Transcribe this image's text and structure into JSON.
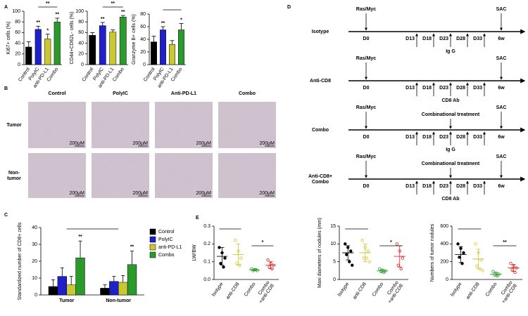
{
  "panel_labels": [
    "A",
    "B",
    "C",
    "D",
    "E"
  ],
  "chart_data": [
    {
      "type": "bar",
      "ylabel": "Ki67+ cells (%)",
      "categories": [
        "Control",
        "PolyIC",
        "anti-PD-L1",
        "Combo"
      ],
      "values": [
        33,
        66,
        48,
        80
      ],
      "errors": [
        10,
        6,
        9,
        7
      ],
      "colors": [
        "#000000",
        "#2020c8",
        "#c8c832",
        "#2a9a2a"
      ],
      "ylim": [
        0,
        100
      ],
      "yticks": [
        0,
        20,
        40,
        60,
        80,
        100
      ],
      "stars": [
        null,
        "**",
        "*",
        "**"
      ],
      "bracket_label": "**"
    },
    {
      "type": "bar",
      "ylabel": "CD44+CD62L- cells (%)",
      "categories": [
        "Control",
        "PolyIC",
        "anti-PD-L1",
        "Combo"
      ],
      "values": [
        55,
        73,
        61,
        89
      ],
      "errors": [
        5,
        6,
        4,
        3
      ],
      "colors": [
        "#000000",
        "#2020c8",
        "#c8c832",
        "#2a9a2a"
      ],
      "ylim": [
        0,
        100
      ],
      "yticks": [
        0,
        20,
        40,
        60,
        80,
        100
      ],
      "stars": [
        null,
        "**",
        null,
        "**"
      ],
      "bracket_label": "**"
    },
    {
      "type": "bar",
      "ylabel": "Granzyme B+ cells (%)",
      "categories": [
        "Control",
        "PolyIC",
        "anti-PD-L1",
        "Combo"
      ],
      "values": [
        36,
        55,
        32,
        55
      ],
      "errors": [
        9,
        5,
        6,
        10
      ],
      "colors": [
        "#000000",
        "#2020c8",
        "#c8c832",
        "#2a9a2a"
      ],
      "ylim": [
        0,
        80
      ],
      "yticks": [
        0,
        20,
        40,
        60,
        80
      ],
      "stars": [
        null,
        "**",
        null,
        "*"
      ]
    },
    {
      "type": "grouped_bar",
      "ylabel": "Standardized number of CD8+ cells",
      "categories": [
        "Tumor",
        "Non-tumor"
      ],
      "ylim": [
        0,
        40
      ],
      "yticks": [
        0,
        10,
        20,
        30,
        40
      ],
      "series": [
        {
          "name": "Control",
          "color": "#000000",
          "values": [
            5,
            4
          ],
          "errors": [
            4,
            2
          ]
        },
        {
          "name": "PolyIC",
          "color": "#2020c8",
          "values": [
            11,
            8
          ],
          "errors": [
            5,
            3
          ]
        },
        {
          "name": "anti-PD-L1",
          "color": "#c8c832",
          "values": [
            6,
            7.5
          ],
          "errors": [
            5,
            4
          ]
        },
        {
          "name": "Combo",
          "color": "#2a9a2a",
          "values": [
            22,
            18
          ],
          "errors": [
            10,
            8
          ]
        }
      ],
      "stars": [
        "**",
        "**"
      ]
    },
    {
      "type": "dot",
      "ylabel": "LW/BW",
      "categories": [
        "Isotype",
        "anti-CD8",
        "Combo",
        "Combo\n+anti-CD8"
      ],
      "colors": [
        "#000000",
        "#d4c430",
        "#2a9a2a",
        "#e02020"
      ],
      "ylim": [
        0,
        0.3
      ],
      "yticks": [
        {
          "value": 0,
          "label": "0.0"
        },
        {
          "value": 0.1,
          "label": "0.1"
        },
        {
          "value": 0.2,
          "label": "0.2"
        },
        {
          "value": 0.3,
          "label": "0.3"
        }
      ],
      "points": [
        [
          0.18,
          0.15,
          0.12,
          0.09,
          0.07
        ],
        [
          0.22,
          0.16,
          0.12,
          0.09,
          0.08
        ],
        [
          0.06,
          0.055,
          0.05,
          0.05,
          0.055
        ],
        [
          0.11,
          0.09,
          0.08,
          0.07,
          0.06
        ]
      ],
      "means": [
        0.13,
        0.14,
        0.054,
        0.08
      ],
      "sds": [
        0.05,
        0.06,
        0.005,
        0.02
      ],
      "pair_labels": [
        null,
        "*"
      ]
    },
    {
      "type": "dot",
      "ylabel": "Maxi diameters of nodules (mm)",
      "categories": [
        "Isotype",
        "anti-CD8",
        "Combo",
        "Combo\n+anti-CD8"
      ],
      "colors": [
        "#000000",
        "#d4c430",
        "#2a9a2a",
        "#e02020"
      ],
      "ylim": [
        0,
        15
      ],
      "yticks": [
        0,
        5,
        10,
        15
      ],
      "points": [
        [
          10,
          9,
          8,
          7,
          5,
          4
        ],
        [
          11,
          9,
          8,
          6,
          6,
          5
        ],
        [
          3,
          2.6,
          2.4,
          2.2,
          2
        ],
        [
          10,
          8,
          6,
          4,
          3
        ]
      ],
      "means": [
        7.5,
        7.5,
        2.4,
        6.5
      ],
      "sds": [
        2,
        2.5,
        0.4,
        3
      ],
      "pair_labels": [
        null,
        "*"
      ]
    },
    {
      "type": "dot",
      "ylabel": "Numbers of tumor nodules",
      "categories": [
        "Isotype",
        "anti-CD8",
        "Combo",
        "Combo\n+anti-CD8"
      ],
      "colors": [
        "#000000",
        "#d4c430",
        "#2a9a2a",
        "#e02020"
      ],
      "ylim": [
        0,
        600
      ],
      "yticks": [
        0,
        200,
        400,
        600
      ],
      "points": [
        [
          400,
          350,
          300,
          250,
          180
        ],
        [
          400,
          300,
          220,
          150,
          120,
          100
        ],
        [
          90,
          70,
          60,
          50,
          40
        ],
        [
          180,
          150,
          130,
          110,
          80
        ]
      ],
      "means": [
        280,
        230,
        60,
        130
      ],
      "sds": [
        90,
        110,
        20,
        40
      ],
      "pair_labels": [
        null,
        "**"
      ]
    }
  ],
  "panel_b": {
    "columns": [
      {
        "label": "Control",
        "color": "#000000"
      },
      {
        "label": "PolyIC",
        "color": "#2020c8"
      },
      {
        "label": "Anti-PD-L1",
        "color": "#c08020"
      },
      {
        "label": "Combo",
        "color": "#2a9a2a"
      }
    ],
    "rows": [
      "Tumor",
      "Non-\ntumor"
    ],
    "scale_bar": "200μM"
  },
  "panel_d": {
    "start": "Ras/Myc",
    "end": "SAC",
    "days": [
      "D0",
      "D13",
      "D18",
      "D23",
      "D28",
      "D33",
      "6w"
    ],
    "rows": [
      {
        "label": "Isotype",
        "color": "#000000",
        "treatment": "Ig G"
      },
      {
        "label": "Anti-CD8",
        "color": "#e0d000",
        "treatment": "CD8 Ab"
      },
      {
        "label": "Combo",
        "color": "#2a9a2a",
        "treatment": "Ig G",
        "regimen": "Combinational treatment"
      },
      {
        "label": "Anti-CD8+\nCombo",
        "color": "#e02020",
        "treatment": "CD8 Ab",
        "regimen": "Combinational treatment"
      }
    ]
  }
}
